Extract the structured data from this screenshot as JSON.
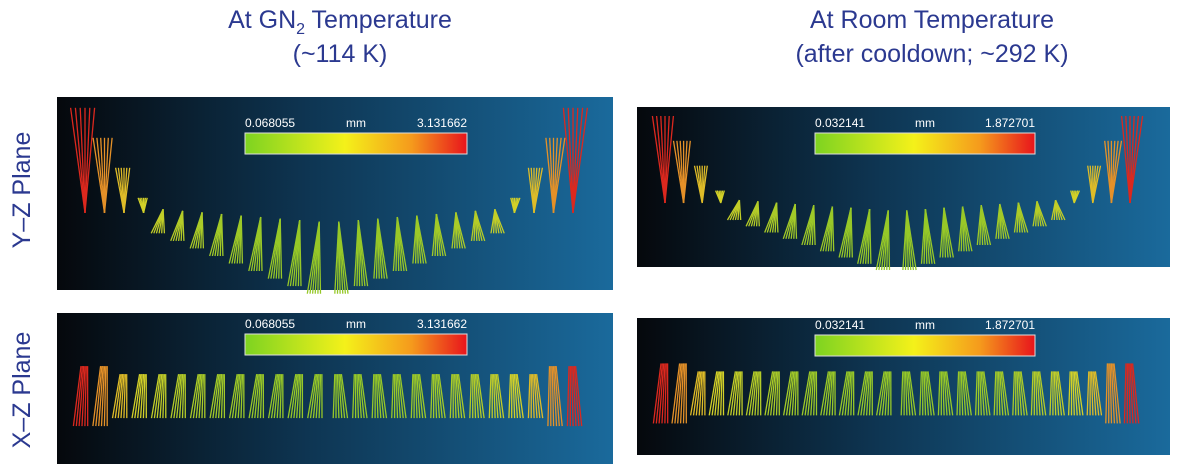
{
  "columns": [
    {
      "title": {
        "text": "At GN",
        "subscript": "2",
        "suffix": " Temperature"
      },
      "subtitle": "(~114 K)"
    },
    {
      "title": {
        "text": "At Room Temperature"
      },
      "subtitle": "(after cooldown; ~292 K)"
    }
  ],
  "rows": [
    {
      "label": "Y–Z Plane",
      "panels": [
        {
          "colorbar": {
            "min": "0.068055",
            "unit": "mm",
            "max": "3.131662"
          }
        },
        {
          "colorbar": {
            "min": "0.032141",
            "unit": "mm",
            "max": "1.872701"
          }
        }
      ]
    },
    {
      "label": "X–Z Plane",
      "panels": [
        {
          "colorbar": {
            "min": "0.068055",
            "unit": "mm",
            "max": "3.131662"
          }
        },
        {
          "colorbar": {
            "min": "0.032141",
            "unit": "mm",
            "max": "1.872701"
          }
        }
      ]
    }
  ]
}
